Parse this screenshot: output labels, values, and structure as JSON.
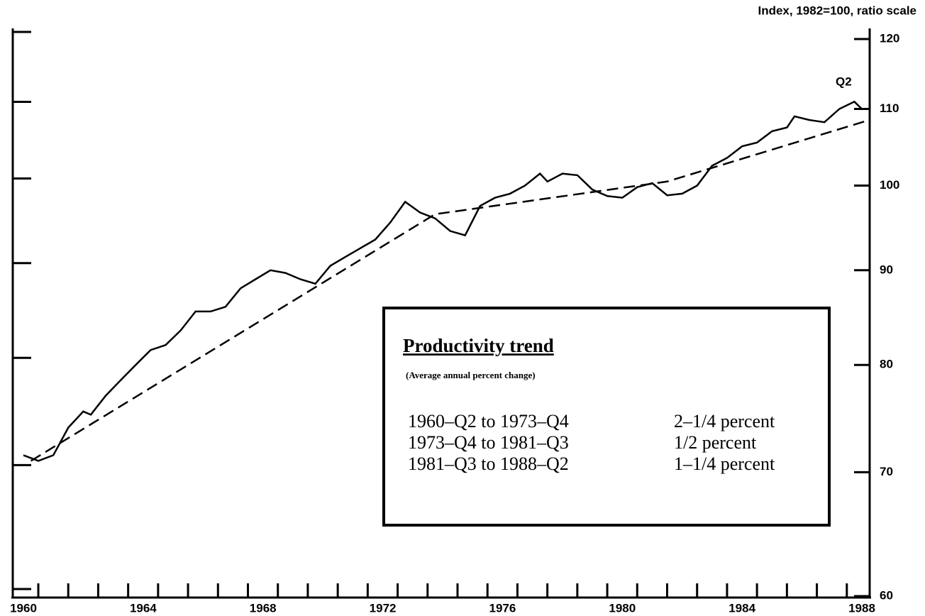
{
  "chart_data": {
    "type": "line",
    "y_axis_label": "Index, 1982=100, ratio scale",
    "log_scale": true,
    "xlim": [
      1960,
      1988
    ],
    "xticks": [
      1960,
      1964,
      1968,
      1972,
      1976,
      1980,
      1984,
      1988
    ],
    "ylim": [
      60,
      120
    ],
    "yticks": [
      60,
      70,
      80,
      90,
      100,
      110,
      120
    ],
    "series": [
      {
        "color": "#000000",
        "dashed": false,
        "x": [
          1960.0,
          1960.5,
          1961.0,
          1961.5,
          1962.0,
          1962.25,
          1962.75,
          1963.25,
          1963.75,
          1964.25,
          1964.75,
          1965.25,
          1965.75,
          1966.25,
          1966.75,
          1967.25,
          1967.75,
          1968.25,
          1968.75,
          1969.25,
          1969.75,
          1970.25,
          1970.75,
          1971.25,
          1971.75,
          1972.25,
          1972.75,
          1973.25,
          1973.75,
          1974.25,
          1974.75,
          1975.25,
          1975.75,
          1976.25,
          1976.75,
          1977.25,
          1977.5,
          1978.0,
          1978.5,
          1979.0,
          1979.5,
          1980.0,
          1980.5,
          1981.0,
          1981.5,
          1982.0,
          1982.5,
          1983.0,
          1983.5,
          1984.0,
          1984.5,
          1985.0,
          1985.5,
          1985.75,
          1986.25,
          1986.75,
          1987.25,
          1987.75,
          1988.0,
          1988.25
        ],
        "values": [
          71.5,
          71,
          71.5,
          74,
          75.5,
          75.2,
          77,
          78.5,
          80,
          81.5,
          82,
          83.5,
          85.5,
          85.5,
          86,
          88,
          89,
          90,
          89.7,
          89,
          88.5,
          90.5,
          91.5,
          92.5,
          93.5,
          95.5,
          98,
          96.7,
          96,
          94.5,
          94,
          97.5,
          98.5,
          99,
          100,
          101.5,
          100.5,
          101.5,
          101.3,
          99.5,
          98.7,
          98.5,
          99.8,
          100.3,
          98.8,
          99,
          100,
          102.5,
          103.5,
          105,
          105.5,
          107,
          107.5,
          109,
          108.5,
          108.2,
          110,
          111,
          110,
          110
        ]
      },
      {
        "color": "#000000",
        "dashed": true,
        "x": [
          1960.25,
          1973.75,
          1981.5,
          1988.25
        ],
        "values": [
          71,
          96.5,
          100.5,
          108.5
        ]
      }
    ],
    "annotations": [
      "Q2"
    ],
    "box": {
      "title": "Productivity trend",
      "subtitle": "(Average annual percent change)",
      "rows": [
        [
          "1960–Q2 to 1973–Q4",
          "2–1/4 percent"
        ],
        [
          "1973–Q4 to 1981–Q3",
          "1/2 percent"
        ],
        [
          "1981–Q3 to 1988–Q2",
          "1–1/4 percent"
        ]
      ]
    }
  }
}
